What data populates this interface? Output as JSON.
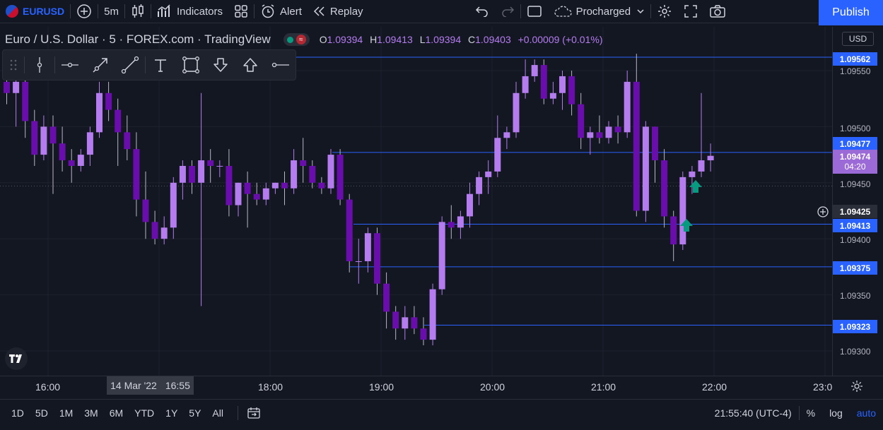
{
  "topbar": {
    "symbol": "EURUSD",
    "interval": "5m",
    "indicators": "Indicators",
    "alert": "Alert",
    "replay": "Replay",
    "layout_name": "Procharged",
    "publish": "Publish"
  },
  "legend": {
    "title": "Euro / U.S. Dollar · 5 · FOREX.com · TradingView",
    "o_label": "O",
    "o": "1.09394",
    "h_label": "H",
    "h": "1.09413",
    "l_label": "L",
    "l": "1.09394",
    "c_label": "C",
    "c": "1.09403",
    "change": "+0.00009 (+0.01%)",
    "wave_icon": "≈"
  },
  "price_scale": {
    "currency": "USD",
    "ticks": [
      "1.09550",
      "1.09500",
      "1.09450",
      "1.09400",
      "1.09350",
      "1.09300"
    ],
    "line_boxes": [
      "1.09562",
      "1.09477",
      "1.09413",
      "1.09375",
      "1.09323"
    ],
    "current_price": "1.09474",
    "countdown": "04:20",
    "crosshair_price": "1.09425"
  },
  "time_axis": {
    "ticks": [
      "16:00",
      "18:00",
      "19:00",
      "20:00",
      "21:00",
      "22:00",
      "23:0"
    ],
    "crosshair_date": "14 Mar '22",
    "crosshair_time": "16:55"
  },
  "bottombar": {
    "ranges": [
      "1D",
      "5D",
      "1M",
      "3M",
      "6M",
      "YTD",
      "1Y",
      "5Y",
      "All"
    ],
    "clock": "21:55:40 (UTC-4)",
    "percent": "%",
    "log": "log",
    "auto": "auto"
  },
  "chart_data": {
    "type": "candlestick",
    "ylim": [
      1.0928,
      1.0958
    ],
    "up_color": "#b57cf0",
    "down_color": "#6a0dad",
    "horizontal_lines": [
      1.09562,
      1.09477,
      1.09413,
      1.09375,
      1.09323
    ],
    "candles": [
      [
        1.0954,
        1.09545,
        1.0952,
        1.0953
      ],
      [
        1.0953,
        1.09545,
        1.095,
        1.0954
      ],
      [
        1.0954,
        1.09545,
        1.0949,
        1.09505
      ],
      [
        1.09505,
        1.09515,
        1.09465,
        1.09475
      ],
      [
        1.09475,
        1.0951,
        1.0947,
        1.095
      ],
      [
        1.095,
        1.0951,
        1.0944,
        1.09485
      ],
      [
        1.09485,
        1.095,
        1.0946,
        1.0947
      ],
      [
        1.0947,
        1.0948,
        1.0945,
        1.09465
      ],
      [
        1.09465,
        1.0948,
        1.0946,
        1.09475
      ],
      [
        1.09475,
        1.095,
        1.09465,
        1.09495
      ],
      [
        1.09495,
        1.0954,
        1.0949,
        1.0953
      ],
      [
        1.0953,
        1.0954,
        1.09505,
        1.09515
      ],
      [
        1.09515,
        1.09525,
        1.09465,
        1.09495
      ],
      [
        1.09495,
        1.0951,
        1.0947,
        1.0948
      ],
      [
        1.0948,
        1.09495,
        1.0942,
        1.09435
      ],
      [
        1.09435,
        1.0946,
        1.094,
        1.09415
      ],
      [
        1.09415,
        1.09425,
        1.09395,
        1.094
      ],
      [
        1.094,
        1.0942,
        1.09395,
        1.0941
      ],
      [
        1.0941,
        1.09455,
        1.094,
        1.0945
      ],
      [
        1.0945,
        1.0947,
        1.09435,
        1.09465
      ],
      [
        1.09465,
        1.0947,
        1.0944,
        1.0945
      ],
      [
        1.0945,
        1.0953,
        1.0934,
        1.0947
      ],
      [
        1.0947,
        1.0948,
        1.0945,
        1.09465
      ],
      [
        1.09465,
        1.0947,
        1.09455,
        1.09465
      ],
      [
        1.09465,
        1.0948,
        1.0942,
        1.0943
      ],
      [
        1.0943,
        1.0945,
        1.0942,
        1.0945
      ],
      [
        1.0945,
        1.0946,
        1.0941,
        1.0944
      ],
      [
        1.0944,
        1.0945,
        1.0943,
        1.09435
      ],
      [
        1.09435,
        1.0945,
        1.0943,
        1.09445
      ],
      [
        1.09445,
        1.0945,
        1.0944,
        1.0945
      ],
      [
        1.0945,
        1.0946,
        1.0943,
        1.09445
      ],
      [
        1.09445,
        1.0948,
        1.0944,
        1.0947
      ],
      [
        1.0947,
        1.0949,
        1.0945,
        1.09465
      ],
      [
        1.09465,
        1.0947,
        1.09445,
        1.0945
      ],
      [
        1.0945,
        1.09455,
        1.0944,
        1.09445
      ],
      [
        1.09445,
        1.0948,
        1.0944,
        1.09475
      ],
      [
        1.09475,
        1.0948,
        1.0943,
        1.09435
      ],
      [
        1.09435,
        1.0944,
        1.0937,
        1.0938
      ],
      [
        1.0938,
        1.094,
        1.0936,
        1.0938
      ],
      [
        1.0938,
        1.0941,
        1.0937,
        1.09405
      ],
      [
        1.09405,
        1.0941,
        1.0935,
        1.0936
      ],
      [
        1.0936,
        1.0937,
        1.0932,
        1.09335
      ],
      [
        1.09335,
        1.0934,
        1.0931,
        1.0932
      ],
      [
        1.0932,
        1.0934,
        1.0931,
        1.0933
      ],
      [
        1.0933,
        1.0934,
        1.09315,
        1.0932
      ],
      [
        1.0932,
        1.0933,
        1.09305,
        1.0931
      ],
      [
        1.0931,
        1.0936,
        1.09305,
        1.09355
      ],
      [
        1.09355,
        1.0942,
        1.0935,
        1.09415
      ],
      [
        1.09415,
        1.0943,
        1.094,
        1.0941
      ],
      [
        1.0941,
        1.09425,
        1.094,
        1.0942
      ],
      [
        1.0942,
        1.0945,
        1.0941,
        1.0944
      ],
      [
        1.0944,
        1.0946,
        1.0943,
        1.09455
      ],
      [
        1.09455,
        1.0947,
        1.0944,
        1.0946
      ],
      [
        1.0946,
        1.0951,
        1.09455,
        1.0949
      ],
      [
        1.0949,
        1.095,
        1.0948,
        1.09495
      ],
      [
        1.09495,
        1.0954,
        1.0949,
        1.0953
      ],
      [
        1.0953,
        1.0956,
        1.09525,
        1.09545
      ],
      [
        1.09545,
        1.0956,
        1.0954,
        1.09555
      ],
      [
        1.09555,
        1.0956,
        1.0952,
        1.09525
      ],
      [
        1.09525,
        1.0954,
        1.0952,
        1.0953
      ],
      [
        1.0953,
        1.0955,
        1.09515,
        1.09545
      ],
      [
        1.09545,
        1.0955,
        1.0951,
        1.0952
      ],
      [
        1.0952,
        1.0953,
        1.0948,
        1.0949
      ],
      [
        1.0949,
        1.095,
        1.09475,
        1.09495
      ],
      [
        1.09495,
        1.0951,
        1.09485,
        1.0949
      ],
      [
        1.0949,
        1.09505,
        1.09485,
        1.095
      ],
      [
        1.095,
        1.0951,
        1.09485,
        1.09495
      ],
      [
        1.09495,
        1.0955,
        1.0949,
        1.0954
      ],
      [
        1.0954,
        1.09565,
        1.0942,
        1.09425
      ],
      [
        1.09425,
        1.09505,
        1.09415,
        1.095
      ],
      [
        1.095,
        1.095,
        1.0945,
        1.0947
      ],
      [
        1.0947,
        1.0948,
        1.0941,
        1.0942
      ],
      [
        1.0942,
        1.09425,
        1.0938,
        1.09395
      ],
      [
        1.09395,
        1.0946,
        1.0939,
        1.09455
      ],
      [
        1.09455,
        1.09465,
        1.0944,
        1.0946
      ],
      [
        1.0946,
        1.0953,
        1.09455,
        1.0947
      ],
      [
        1.0947,
        1.09485,
        1.0946,
        1.09474
      ]
    ]
  }
}
